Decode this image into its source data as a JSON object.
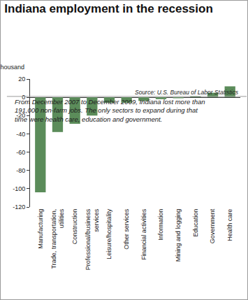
{
  "chart_data": {
    "type": "bar",
    "title": "Indiana employment in the recession",
    "subtitle": "From December 2007 to December 2009, Indiana lost more than 191,000 non-farm jobs. The only sectors to expand during that time were health care, education and government.",
    "ylabel": "thousand",
    "source": "Source: U.S. Bureau of Labor Statistics",
    "categories": [
      "Manufacturing",
      "Trade, transportation, utilities",
      "Construction",
      "Professional/business services",
      "Leisure/hospitality",
      "Other services",
      "Financial activities",
      "Information",
      "Mining and logging",
      "Education",
      "Government",
      "Health care"
    ],
    "values": [
      -104,
      -38,
      -29,
      -20,
      -6,
      -6,
      -4,
      -2,
      -1,
      1,
      5,
      12
    ],
    "color": "#5b8c5a",
    "ylim": [
      -120,
      20
    ],
    "yticks": [
      -120,
      -100,
      -80,
      -60,
      -40,
      -20,
      0,
      20
    ],
    "grid": false
  }
}
